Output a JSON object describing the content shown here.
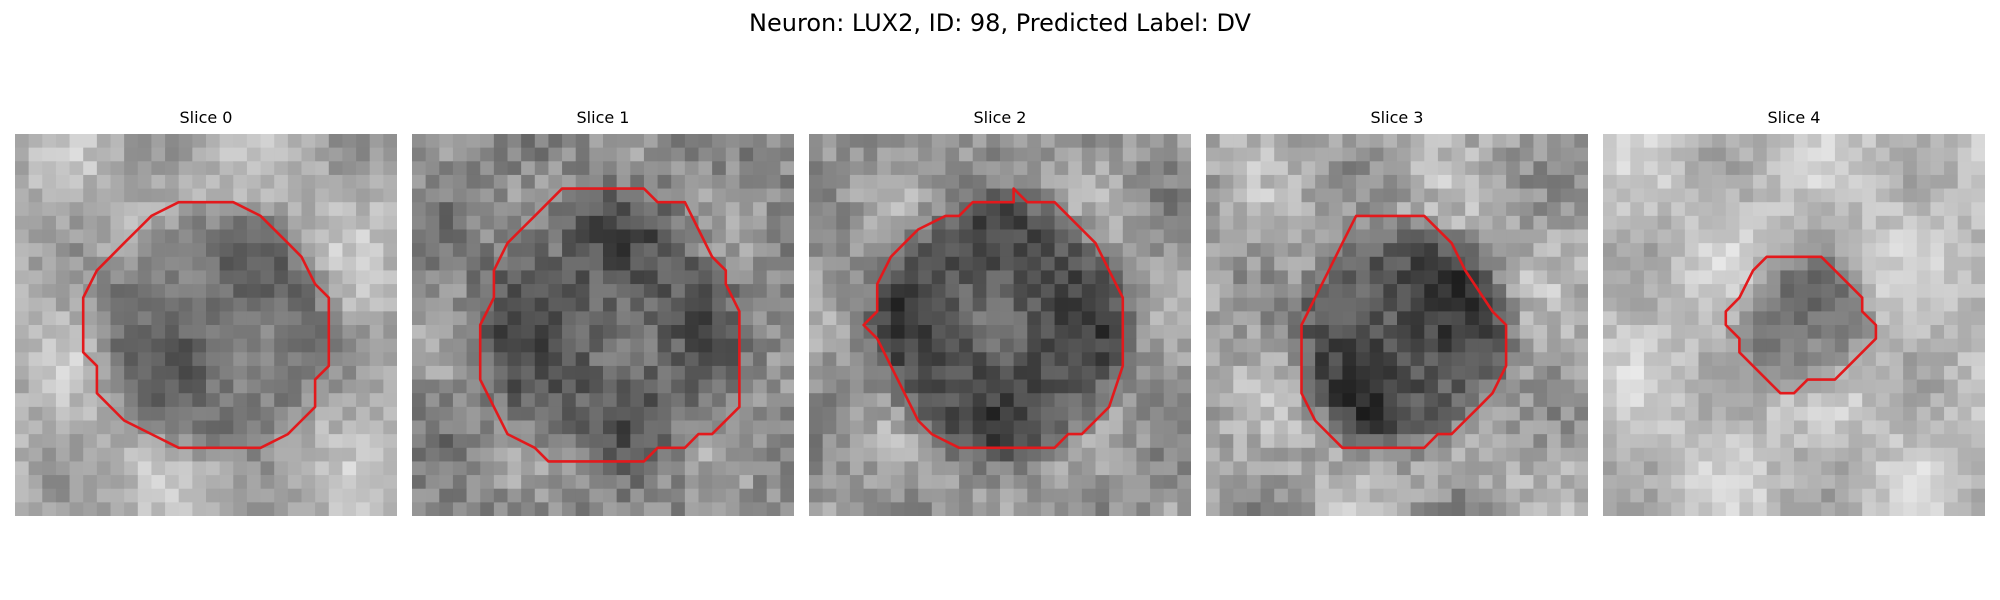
{
  "figure": {
    "title": "Neuron: LUX2, ID: 98, Predicted Label: DV",
    "contour_color": "#e3191c"
  },
  "panels": [
    {
      "title": "Slice 0"
    },
    {
      "title": "Slice 1"
    },
    {
      "title": "Slice 2"
    },
    {
      "title": "Slice 3"
    },
    {
      "title": "Slice 4"
    }
  ]
}
